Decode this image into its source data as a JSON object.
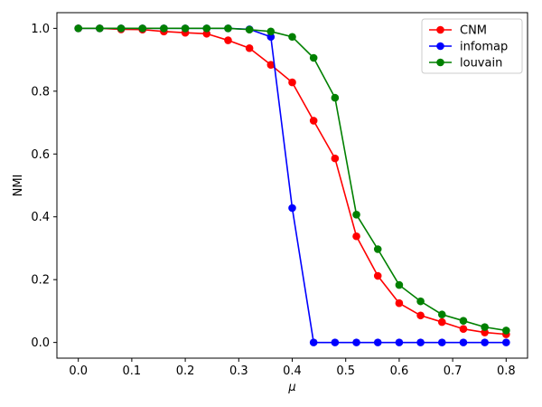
{
  "chart_data": {
    "type": "line",
    "xlabel": "μ",
    "ylabel": "NMI",
    "xlim": [
      -0.04,
      0.84
    ],
    "ylim": [
      -0.05,
      1.05
    ],
    "xticks": [
      "0.0",
      "0.1",
      "0.2",
      "0.3",
      "0.4",
      "0.5",
      "0.6",
      "0.7",
      "0.8"
    ],
    "yticks": [
      "0.0",
      "0.2",
      "0.4",
      "0.6",
      "0.8",
      "1.0"
    ],
    "grid": false,
    "legend_position": "top-right",
    "x": [
      0.0,
      0.04,
      0.08,
      0.12,
      0.16,
      0.2,
      0.24,
      0.28,
      0.32,
      0.36,
      0.4,
      0.44,
      0.48,
      0.52,
      0.56,
      0.6,
      0.64,
      0.68,
      0.72,
      0.76,
      0.8
    ],
    "series": [
      {
        "name": "CNM",
        "color": "#ff0000",
        "values": [
          1.0,
          1.0,
          0.997,
          0.996,
          0.99,
          0.986,
          0.983,
          0.962,
          0.937,
          0.884,
          0.828,
          0.706,
          0.586,
          0.338,
          0.212,
          0.125,
          0.086,
          0.065,
          0.043,
          0.032,
          0.026
        ]
      },
      {
        "name": "infomap",
        "color": "#0000ff",
        "values": [
          1.0,
          1.0,
          1.0,
          1.0,
          1.0,
          1.0,
          1.0,
          1.0,
          0.997,
          0.973,
          0.428,
          0.0,
          0.0,
          0.0,
          0.0,
          0.0,
          0.0,
          0.0,
          0.0,
          0.0,
          0.0
        ]
      },
      {
        "name": "louvain",
        "color": "#008000",
        "values": [
          1.0,
          1.0,
          1.0,
          1.0,
          1.0,
          1.0,
          1.0,
          1.0,
          0.996,
          0.99,
          0.973,
          0.906,
          0.779,
          0.407,
          0.297,
          0.183,
          0.131,
          0.089,
          0.069,
          0.049,
          0.038
        ]
      }
    ]
  }
}
